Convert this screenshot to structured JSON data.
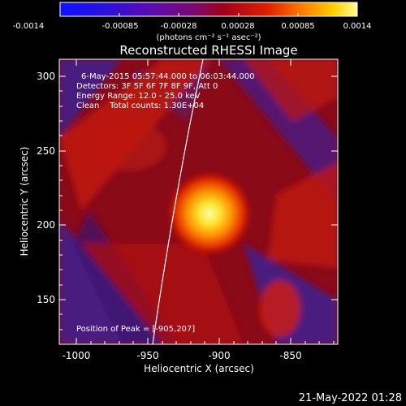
{
  "colorbar": {
    "ticks": [
      "-0.0014",
      "-0.00085",
      "-0.00028",
      "0.00028",
      "0.00085",
      "0.0014"
    ],
    "unit_label": "(photons cm⁻² s⁻¹ asec⁻²)"
  },
  "title": "Reconstructed RHESSI Image",
  "info": {
    "line1": "6-May-2015 05:57:44.000 to 06:03:44.000",
    "line2": "Detectors: 3F 5F 6F 7F 8F 9F, Att 0",
    "line3": "Energy Range: 12.0 - 25.0 keV",
    "line4": "Clean    Total counts: 1.30E+04"
  },
  "peak_text": "Position of Peak = [-905,207]",
  "axes": {
    "x_label": "Heliocentric X (arcsec)",
    "y_label": "Heliocentric Y (arcsec)",
    "x_ticks": [
      "-1000",
      "-950",
      "-900",
      "-850"
    ],
    "y_ticks": [
      "300",
      "250",
      "200",
      "150"
    ]
  },
  "timestamp": "21-May-2022 01:28",
  "colors": {
    "background": "#000000",
    "peak": "#ffff60",
    "limb": "#ffffff"
  }
}
